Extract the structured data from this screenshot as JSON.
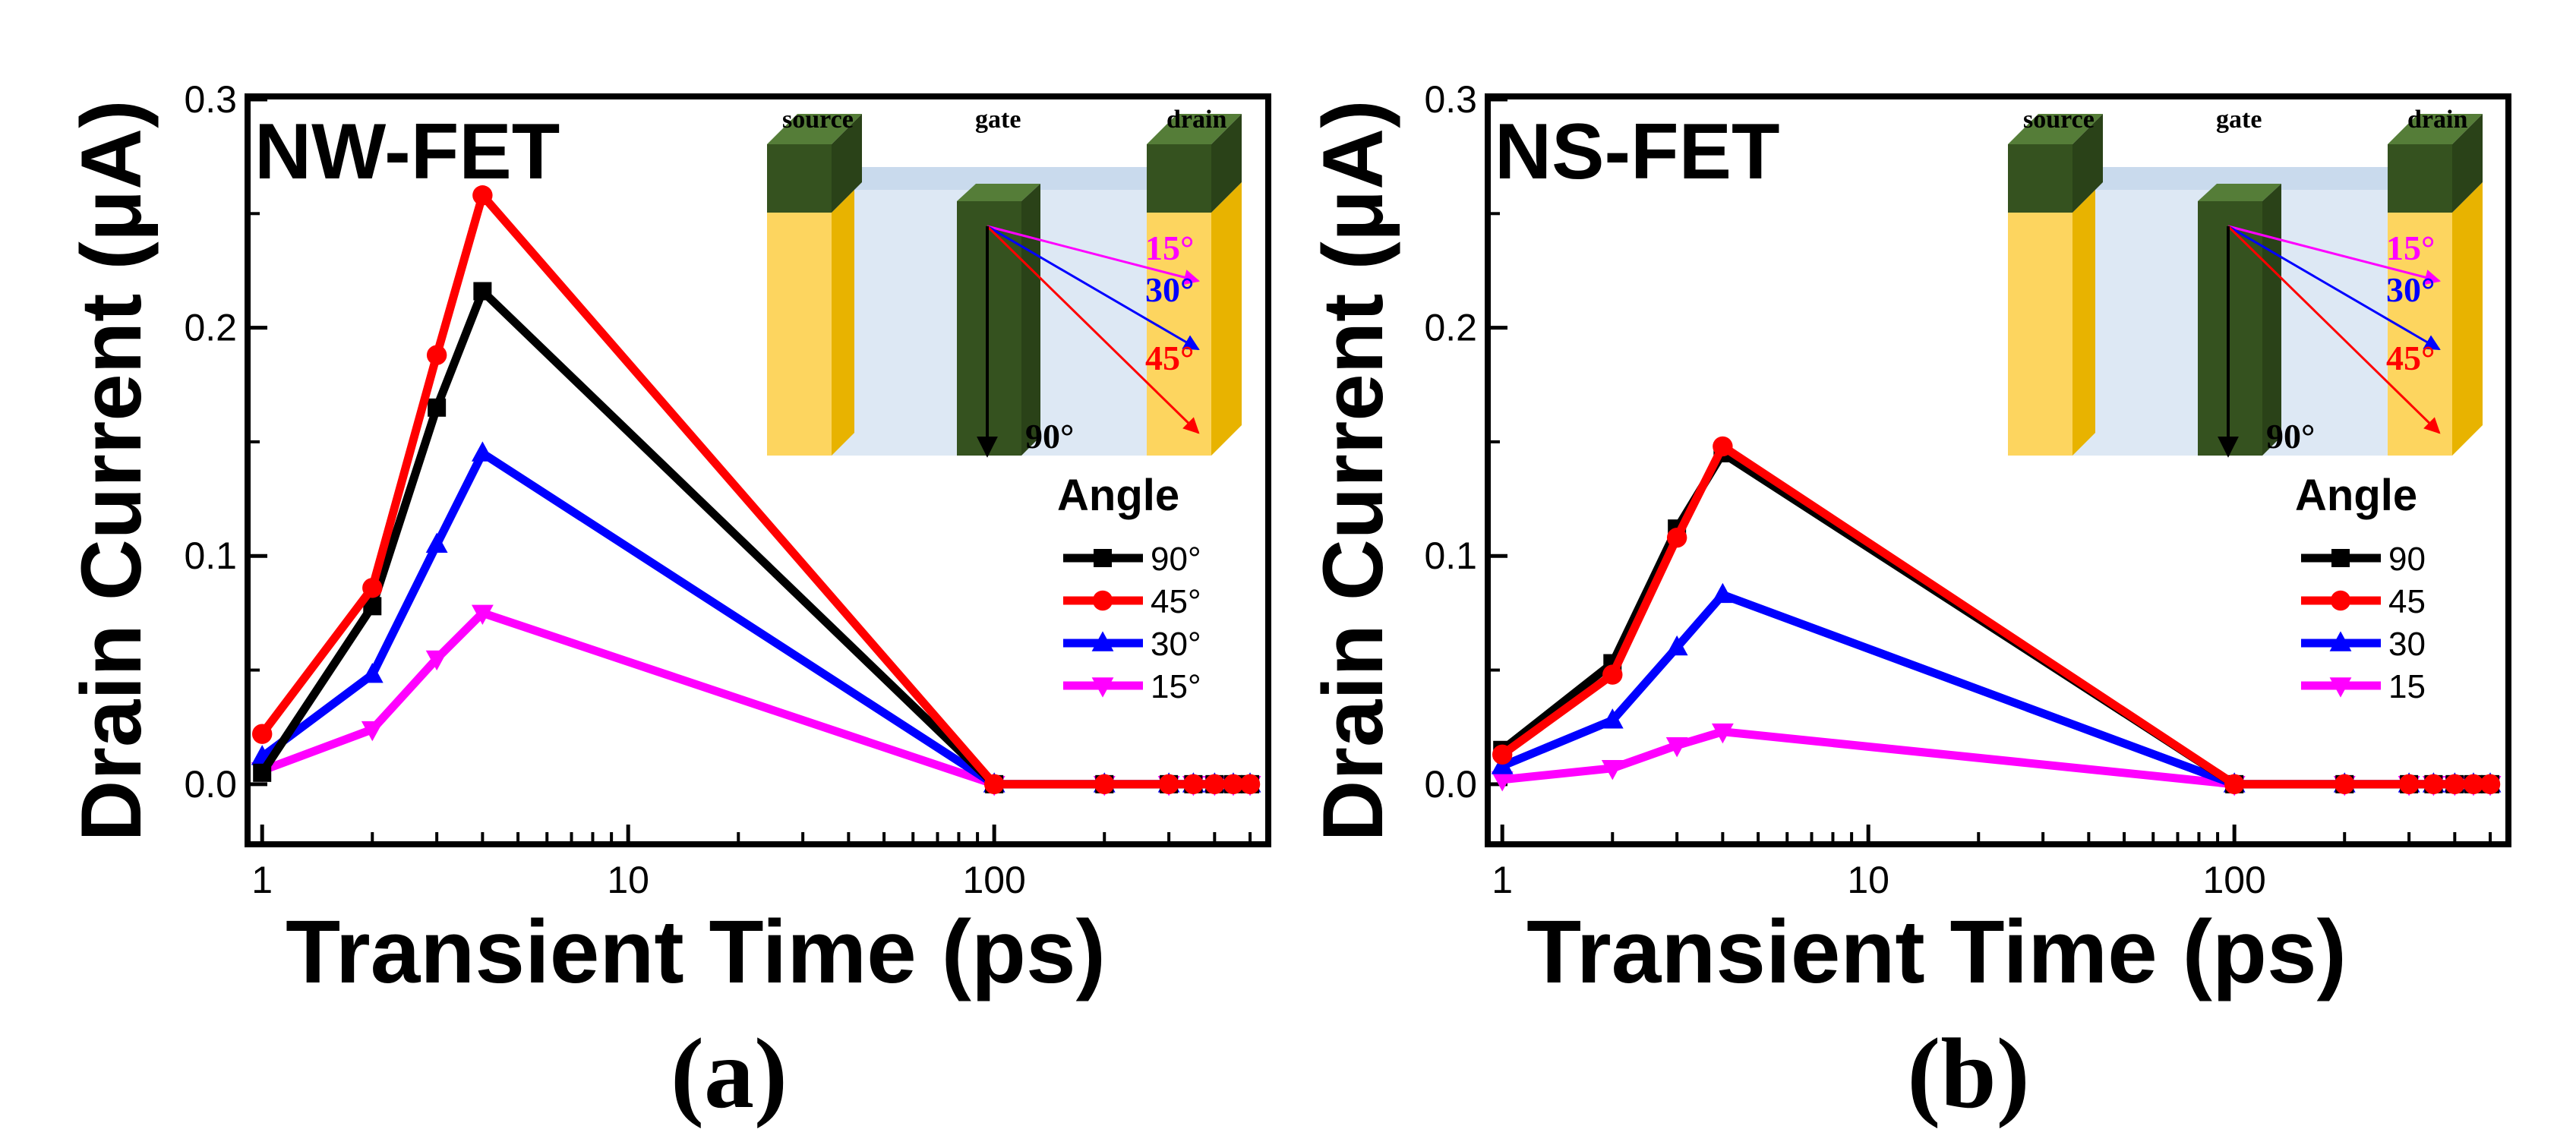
{
  "colors": {
    "90": "#000000",
    "45": "#ff0000",
    "30": "#0000ff",
    "15": "#ff00ff",
    "source_drain_face": "#fdd55f",
    "source_drain_side": "#e8b300",
    "contact_top": "#466b2f",
    "contact_face": "#35521f",
    "contact_side": "#2a4218",
    "channel": "#dde8f4",
    "channel_top": "#c9daed"
  },
  "chart_data": [
    {
      "type": "line",
      "panel_title": "NW-FET",
      "caption": "(a)",
      "xlabel": "Transient Time (ps)",
      "ylabel": "Drain Current (μA)",
      "xscale": "log",
      "xlim": [
        0.93,
        550
      ],
      "ylim": [
        -0.025,
        0.3
      ],
      "xticks": [
        1,
        10,
        100
      ],
      "xtick_labels": [
        "1",
        "10",
        "100"
      ],
      "yticks": [
        0.0,
        0.1,
        0.2,
        0.3
      ],
      "ytick_labels": [
        "0.0",
        "0.1",
        "0.2",
        "0.3"
      ],
      "x": [
        1,
        2,
        3,
        4,
        100,
        200,
        300,
        350,
        400,
        450,
        500
      ],
      "legend_title": "Angle",
      "series": [
        {
          "name": "90°",
          "key": "90",
          "marker": "square",
          "values": [
            0.005,
            0.078,
            0.165,
            0.216,
            0.0,
            0.0,
            0.0,
            0.0,
            0.0,
            0.0,
            0.0
          ]
        },
        {
          "name": "45°",
          "key": "45",
          "marker": "circle",
          "values": [
            0.022,
            0.086,
            0.188,
            0.258,
            0.0,
            0.0,
            0.0,
            0.0,
            0.0,
            0.0,
            0.0
          ]
        },
        {
          "name": "30°",
          "key": "30",
          "marker": "triangle-up",
          "values": [
            0.012,
            0.048,
            0.105,
            0.145,
            0.0,
            0.0,
            0.0,
            0.0,
            0.0,
            0.0,
            0.0
          ]
        },
        {
          "name": "15°",
          "key": "15",
          "marker": "triangle-down",
          "values": [
            0.006,
            0.024,
            0.055,
            0.075,
            0.0,
            0.0,
            0.0,
            0.0,
            0.0,
            0.0,
            0.0
          ]
        }
      ],
      "inset": {
        "source_label": "source",
        "gate_label": "gate",
        "drain_label": "drain",
        "angles": [
          {
            "label": "15°",
            "key": "15"
          },
          {
            "label": "30°",
            "key": "30"
          },
          {
            "label": "45°",
            "key": "45"
          },
          {
            "label": "90°",
            "key": "90"
          }
        ]
      }
    },
    {
      "type": "line",
      "panel_title": "NS-FET",
      "caption": "(b)",
      "xlabel": "Transient Time (ps)",
      "ylabel": "Drain Current (μA)",
      "xscale": "log",
      "xlim": [
        0.93,
        550
      ],
      "ylim": [
        -0.025,
        0.3
      ],
      "xticks": [
        1,
        10,
        100
      ],
      "xtick_labels": [
        "1",
        "10",
        "100"
      ],
      "yticks": [
        0.0,
        0.1,
        0.2,
        0.3
      ],
      "ytick_labels": [
        "0.0",
        "0.1",
        "0.2",
        "0.3"
      ],
      "x": [
        1,
        2,
        3,
        4,
        100,
        200,
        300,
        350,
        400,
        450,
        500
      ],
      "legend_title": "Angle",
      "series": [
        {
          "name": "90",
          "key": "90",
          "marker": "square",
          "values": [
            0.015,
            0.053,
            0.112,
            0.145,
            0.0,
            0.0,
            0.0,
            0.0,
            0.0,
            0.0,
            0.0
          ]
        },
        {
          "name": "45",
          "key": "45",
          "marker": "circle",
          "values": [
            0.013,
            0.048,
            0.108,
            0.148,
            0.0,
            0.0,
            0.0,
            0.0,
            0.0,
            0.0,
            0.0
          ]
        },
        {
          "name": "30",
          "key": "30",
          "marker": "triangle-up",
          "values": [
            0.008,
            0.028,
            0.06,
            0.083,
            0.0,
            0.0,
            0.0,
            0.0,
            0.0,
            0.0,
            0.0
          ]
        },
        {
          "name": "15",
          "key": "15",
          "marker": "triangle-down",
          "values": [
            0.002,
            0.007,
            0.017,
            0.023,
            0.0,
            0.0,
            0.0,
            0.0,
            0.0,
            0.0,
            0.0
          ]
        }
      ],
      "inset": {
        "source_label": "source",
        "gate_label": "gate",
        "drain_label": "drain",
        "angles": [
          {
            "label": "15°",
            "key": "15"
          },
          {
            "label": "30°",
            "key": "30"
          },
          {
            "label": "45°",
            "key": "45"
          },
          {
            "label": "90°",
            "key": "90"
          }
        ]
      }
    }
  ]
}
